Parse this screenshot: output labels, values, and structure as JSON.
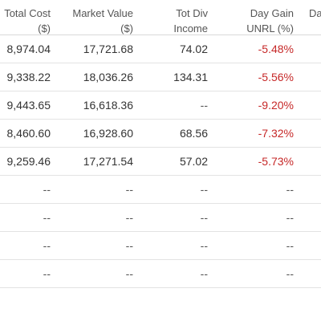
{
  "headers": {
    "total_cost": {
      "line1": "Total Cost",
      "line2": "($)"
    },
    "market_value": {
      "line1": "Market Value",
      "line2": "($)"
    },
    "tot_div_income": {
      "line1": "Tot Div",
      "line2": "Income"
    },
    "day_gain_unrl": {
      "line1": "Day Gain",
      "line2": "UNRL (%)"
    },
    "next_col_partial": {
      "line1": "Da"
    }
  },
  "rows": [
    {
      "total_cost": "8,974.04",
      "market_value": "17,721.68",
      "tot_div_income": "74.02",
      "day_gain_unrl": "-5.48%"
    },
    {
      "total_cost": "9,338.22",
      "market_value": "18,036.26",
      "tot_div_income": "134.31",
      "day_gain_unrl": "-5.56%"
    },
    {
      "total_cost": "9,443.65",
      "market_value": "16,618.36",
      "tot_div_income": "--",
      "day_gain_unrl": "-9.20%"
    },
    {
      "total_cost": "8,460.60",
      "market_value": "16,928.60",
      "tot_div_income": "68.56",
      "day_gain_unrl": "-7.32%"
    },
    {
      "total_cost": "9,259.46",
      "market_value": "17,271.54",
      "tot_div_income": "57.02",
      "day_gain_unrl": "-5.73%"
    },
    {
      "total_cost": "--",
      "market_value": "--",
      "tot_div_income": "--",
      "day_gain_unrl": "--"
    },
    {
      "total_cost": "--",
      "market_value": "--",
      "tot_div_income": "--",
      "day_gain_unrl": "--"
    },
    {
      "total_cost": "--",
      "market_value": "--",
      "tot_div_income": "--",
      "day_gain_unrl": "--"
    },
    {
      "total_cost": "--",
      "market_value": "--",
      "tot_div_income": "--",
      "day_gain_unrl": "--"
    }
  ],
  "colors": {
    "negative": "#c62828",
    "text": "#333333",
    "border": "#e3e3e3"
  }
}
